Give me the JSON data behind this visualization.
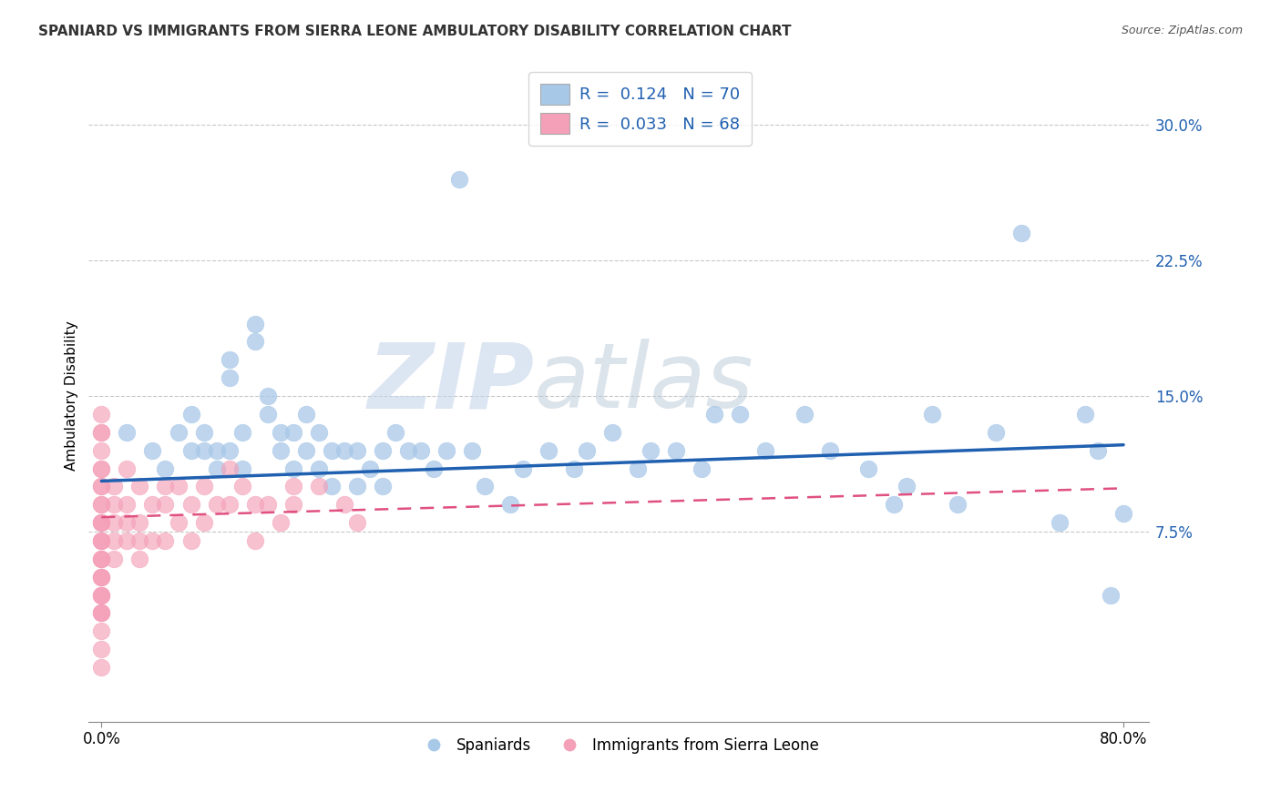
{
  "title": "SPANIARD VS IMMIGRANTS FROM SIERRA LEONE AMBULATORY DISABILITY CORRELATION CHART",
  "source": "Source: ZipAtlas.com",
  "ylabel": "Ambulatory Disability",
  "right_yticks": [
    0.075,
    0.15,
    0.225,
    0.3
  ],
  "right_ytick_labels": [
    "7.5%",
    "15.0%",
    "22.5%",
    "30.0%"
  ],
  "xlim": [
    -0.01,
    0.82
  ],
  "ylim": [
    -0.03,
    0.33
  ],
  "blue_color": "#a8c8e8",
  "pink_color": "#f4a0b8",
  "blue_line_color": "#2060b0",
  "pink_line_color": "#e05080",
  "watermark": "ZIPatlas",
  "watermark_color": "#c8d8f0",
  "legend_label_blue": "Spaniards",
  "legend_label_pink": "Immigrants from Sierra Leone",
  "blue_scatter_x": [
    0.02,
    0.04,
    0.05,
    0.06,
    0.07,
    0.07,
    0.08,
    0.08,
    0.09,
    0.09,
    0.1,
    0.1,
    0.1,
    0.11,
    0.11,
    0.12,
    0.12,
    0.13,
    0.13,
    0.14,
    0.14,
    0.15,
    0.15,
    0.16,
    0.16,
    0.17,
    0.17,
    0.18,
    0.18,
    0.19,
    0.2,
    0.2,
    0.21,
    0.22,
    0.22,
    0.23,
    0.24,
    0.25,
    0.26,
    0.27,
    0.28,
    0.29,
    0.3,
    0.32,
    0.33,
    0.35,
    0.37,
    0.38,
    0.4,
    0.42,
    0.43,
    0.45,
    0.47,
    0.48,
    0.5,
    0.52,
    0.55,
    0.57,
    0.6,
    0.62,
    0.63,
    0.65,
    0.67,
    0.7,
    0.72,
    0.75,
    0.77,
    0.78,
    0.79,
    0.8
  ],
  "blue_scatter_y": [
    0.13,
    0.12,
    0.11,
    0.13,
    0.12,
    0.14,
    0.12,
    0.13,
    0.12,
    0.11,
    0.17,
    0.16,
    0.12,
    0.13,
    0.11,
    0.19,
    0.18,
    0.15,
    0.14,
    0.13,
    0.12,
    0.13,
    0.11,
    0.14,
    0.12,
    0.13,
    0.11,
    0.12,
    0.1,
    0.12,
    0.12,
    0.1,
    0.11,
    0.12,
    0.1,
    0.13,
    0.12,
    0.12,
    0.11,
    0.12,
    0.27,
    0.12,
    0.1,
    0.09,
    0.11,
    0.12,
    0.11,
    0.12,
    0.13,
    0.11,
    0.12,
    0.12,
    0.11,
    0.14,
    0.14,
    0.12,
    0.14,
    0.12,
    0.11,
    0.09,
    0.1,
    0.14,
    0.09,
    0.13,
    0.24,
    0.08,
    0.14,
    0.12,
    0.04,
    0.085
  ],
  "pink_scatter_x": [
    0.0,
    0.0,
    0.0,
    0.0,
    0.0,
    0.0,
    0.0,
    0.0,
    0.0,
    0.0,
    0.0,
    0.0,
    0.0,
    0.0,
    0.0,
    0.0,
    0.0,
    0.0,
    0.0,
    0.0,
    0.0,
    0.0,
    0.0,
    0.0,
    0.0,
    0.0,
    0.0,
    0.0,
    0.0,
    0.0,
    0.01,
    0.01,
    0.01,
    0.01,
    0.01,
    0.02,
    0.02,
    0.02,
    0.02,
    0.03,
    0.03,
    0.03,
    0.03,
    0.04,
    0.04,
    0.05,
    0.05,
    0.05,
    0.06,
    0.06,
    0.07,
    0.07,
    0.08,
    0.08,
    0.09,
    0.1,
    0.1,
    0.11,
    0.12,
    0.12,
    0.13,
    0.14,
    0.15,
    0.15,
    0.17,
    0.19,
    0.2,
    0.0
  ],
  "pink_scatter_y": [
    0.12,
    0.11,
    0.1,
    0.09,
    0.08,
    0.07,
    0.06,
    0.05,
    0.04,
    0.03,
    0.02,
    0.01,
    0.0,
    0.13,
    0.14,
    0.05,
    0.04,
    0.03,
    0.06,
    0.07,
    0.08,
    0.09,
    0.1,
    0.11,
    0.04,
    0.03,
    0.05,
    0.06,
    0.07,
    0.08,
    0.1,
    0.09,
    0.08,
    0.07,
    0.06,
    0.11,
    0.09,
    0.08,
    0.07,
    0.1,
    0.08,
    0.07,
    0.06,
    0.09,
    0.07,
    0.1,
    0.09,
    0.07,
    0.1,
    0.08,
    0.09,
    0.07,
    0.1,
    0.08,
    0.09,
    0.11,
    0.09,
    0.1,
    0.09,
    0.07,
    0.09,
    0.08,
    0.1,
    0.09,
    0.1,
    0.09,
    0.08,
    0.13
  ],
  "blue_line_x0": 0.0,
  "blue_line_x1": 0.8,
  "blue_line_y0": 0.103,
  "blue_line_y1": 0.123,
  "pink_line_x0": 0.0,
  "pink_line_x1": 0.8,
  "pink_line_y0": 0.083,
  "pink_line_y1": 0.099
}
